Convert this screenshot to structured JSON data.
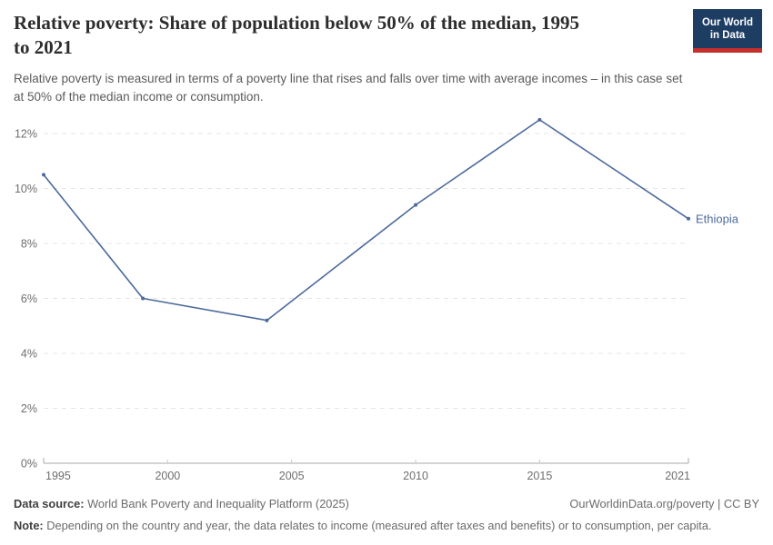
{
  "header": {
    "title_line1": "Relative poverty: Share of population below 50% of the median, 1995",
    "title_line2": "to 2021",
    "subtitle": "Relative poverty is measured in terms of a poverty line that rises and falls over time with average incomes – in this case set at 50% of the median income or consumption.",
    "logo": {
      "line1": "Our World",
      "line2": "in Data",
      "bg_color": "#1d3d63",
      "accent_color": "#c5302c"
    }
  },
  "chart_data": {
    "type": "line",
    "title": "Relative poverty: Share of population below 50% of the median, 1995 to 2021",
    "series": [
      {
        "name": "Ethiopia",
        "color": "#4C6A9C",
        "points": [
          {
            "x": 1995,
            "y": 10.5
          },
          {
            "x": 1999,
            "y": 6.0
          },
          {
            "x": 2004,
            "y": 5.2
          },
          {
            "x": 2010,
            "y": 9.4
          },
          {
            "x": 2015,
            "y": 12.5
          },
          {
            "x": 2021,
            "y": 8.9
          }
        ]
      }
    ],
    "xlabel": "",
    "ylabel": "",
    "x_ticks": [
      1995,
      2000,
      2005,
      2010,
      2015,
      2021
    ],
    "y_ticks": [
      0,
      2,
      4,
      6,
      8,
      10,
      12
    ],
    "y_tick_suffix": "%",
    "xlim": [
      1995,
      2021
    ],
    "ylim": [
      0,
      12.5
    ],
    "grid": "horizontal-dashed",
    "legend": "end-of-line-label",
    "colors": {
      "grid": "#e4e4e4",
      "axis": "#a8a8a8",
      "minor_tick": "#c9c9c9",
      "tick_label": "#6e6e6e"
    }
  },
  "footer": {
    "datasource_label": "Data source:",
    "datasource_text": " World Bank Poverty and Inequality Platform (2025)",
    "link_text": "OurWorldinData.org/poverty | CC BY",
    "note_label": "Note:",
    "note_text": " Depending on the country and year, the data relates to income (measured after taxes and benefits) or to consumption, per capita."
  }
}
